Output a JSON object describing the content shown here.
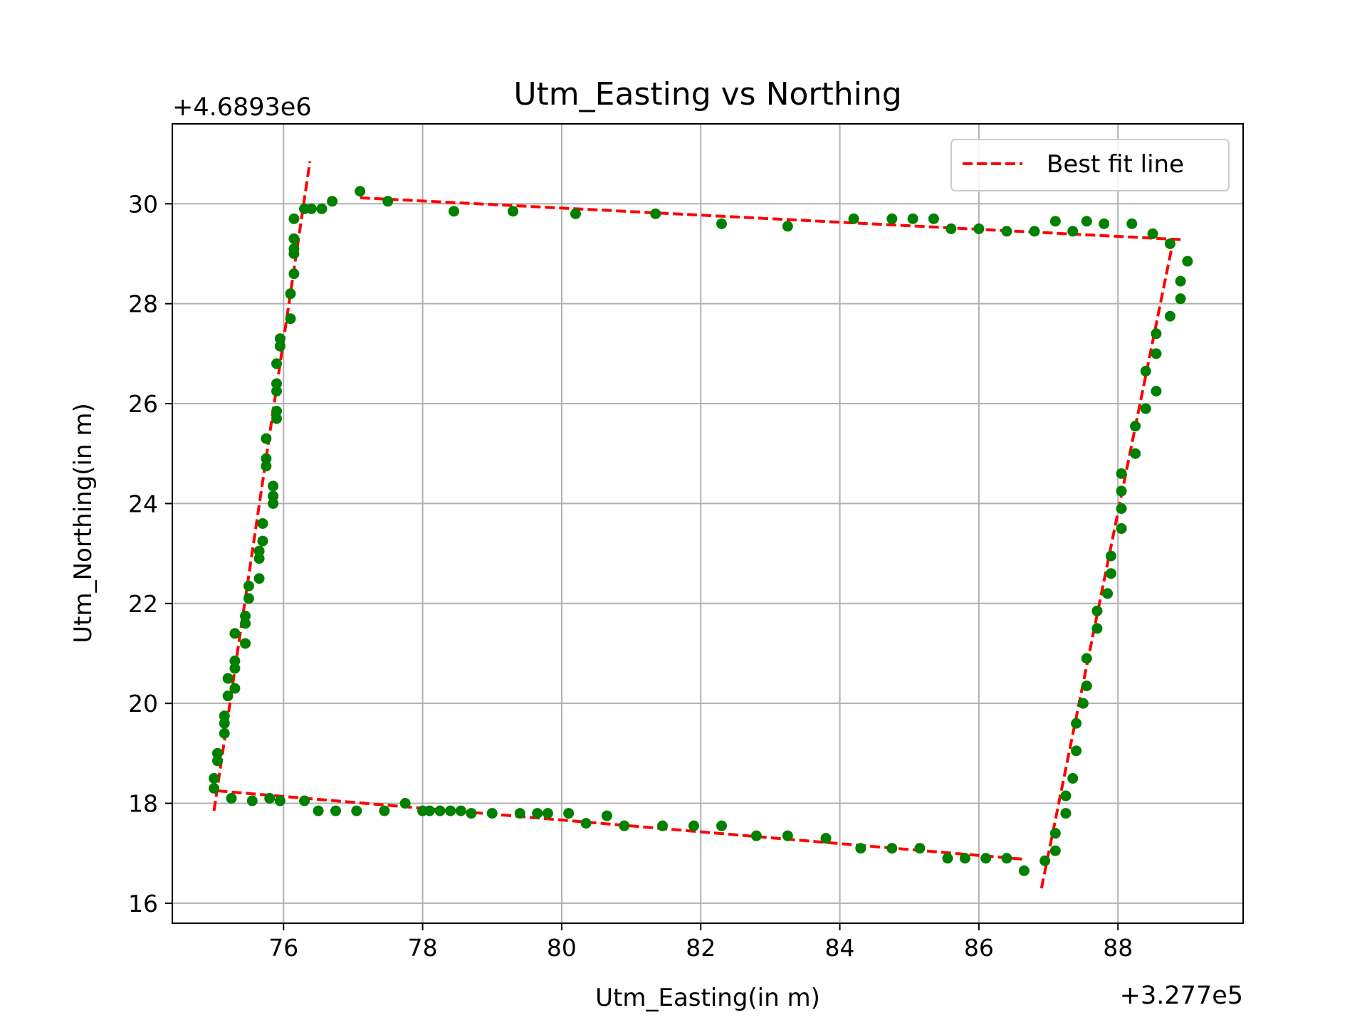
{
  "chart_data": {
    "type": "scatter",
    "title": "Utm_Easting vs Northing",
    "xlabel": "Utm_Easting(in m)",
    "ylabel": "Utm_Northing(in m)",
    "x_offset_label": "+3.277e5",
    "y_offset_label": "+4.6893e6",
    "xlim": [
      74.4,
      89.8
    ],
    "ylim": [
      15.6,
      31.6
    ],
    "x_ticks": [
      "76",
      "78",
      "80",
      "82",
      "84",
      "86",
      "88"
    ],
    "y_ticks": [
      "16",
      "18",
      "20",
      "22",
      "24",
      "26",
      "28",
      "30"
    ],
    "grid": true,
    "legend_position": "top-right",
    "colors": {
      "points": "#008000",
      "fit_line": "#ff0000",
      "grid": "#b0b0b0"
    },
    "fit_lines": {
      "name": "Best fit line",
      "segments": [
        [
          [
            75.0,
            17.85
          ],
          [
            76.38,
            30.85
          ]
        ],
        [
          [
            77.1,
            30.12
          ],
          [
            88.95,
            29.28
          ]
        ],
        [
          [
            75.05,
            18.25
          ],
          [
            86.65,
            16.88
          ]
        ],
        [
          [
            86.9,
            16.3
          ],
          [
            88.8,
            29.3
          ]
        ]
      ]
    },
    "points": [
      [
        75.0,
        18.3
      ],
      [
        75.0,
        18.5
      ],
      [
        75.05,
        18.85
      ],
      [
        75.05,
        19.0
      ],
      [
        75.15,
        19.4
      ],
      [
        75.15,
        19.6
      ],
      [
        75.15,
        19.75
      ],
      [
        75.2,
        20.15
      ],
      [
        75.2,
        20.5
      ],
      [
        75.3,
        20.3
      ],
      [
        75.3,
        20.7
      ],
      [
        75.3,
        20.85
      ],
      [
        75.3,
        21.4
      ],
      [
        75.45,
        21.2
      ],
      [
        75.45,
        21.6
      ],
      [
        75.45,
        21.75
      ],
      [
        75.5,
        22.1
      ],
      [
        75.5,
        22.35
      ],
      [
        75.65,
        22.5
      ],
      [
        75.65,
        22.9
      ],
      [
        75.65,
        23.05
      ],
      [
        75.7,
        23.25
      ],
      [
        75.7,
        23.6
      ],
      [
        75.75,
        24.75
      ],
      [
        75.75,
        24.9
      ],
      [
        75.75,
        25.3
      ],
      [
        75.85,
        24.0
      ],
      [
        75.85,
        24.15
      ],
      [
        75.85,
        24.35
      ],
      [
        75.9,
        25.7
      ],
      [
        75.9,
        25.85
      ],
      [
        75.9,
        26.25
      ],
      [
        75.9,
        26.4
      ],
      [
        75.9,
        26.8
      ],
      [
        75.95,
        27.15
      ],
      [
        75.95,
        27.3
      ],
      [
        76.1,
        27.7
      ],
      [
        76.1,
        28.2
      ],
      [
        76.15,
        28.6
      ],
      [
        76.15,
        29.0
      ],
      [
        76.15,
        29.1
      ],
      [
        76.15,
        29.3
      ],
      [
        76.15,
        29.7
      ],
      [
        76.3,
        29.9
      ],
      [
        76.4,
        29.9
      ],
      [
        76.55,
        29.9
      ],
      [
        76.7,
        30.05
      ],
      [
        77.1,
        30.25
      ],
      [
        77.5,
        30.05
      ],
      [
        78.45,
        29.85
      ],
      [
        79.3,
        29.85
      ],
      [
        80.2,
        29.8
      ],
      [
        81.35,
        29.8
      ],
      [
        82.3,
        29.6
      ],
      [
        83.25,
        29.55
      ],
      [
        84.2,
        29.7
      ],
      [
        84.75,
        29.7
      ],
      [
        85.05,
        29.7
      ],
      [
        85.35,
        29.7
      ],
      [
        85.6,
        29.5
      ],
      [
        86.0,
        29.5
      ],
      [
        86.4,
        29.45
      ],
      [
        86.8,
        29.45
      ],
      [
        87.1,
        29.65
      ],
      [
        87.35,
        29.45
      ],
      [
        87.55,
        29.65
      ],
      [
        87.8,
        29.6
      ],
      [
        88.2,
        29.6
      ],
      [
        88.5,
        29.4
      ],
      [
        88.75,
        29.2
      ],
      [
        89.0,
        28.85
      ],
      [
        88.9,
        28.45
      ],
      [
        88.9,
        28.1
      ],
      [
        88.75,
        27.75
      ],
      [
        88.55,
        27.4
      ],
      [
        88.55,
        27.0
      ],
      [
        88.4,
        26.65
      ],
      [
        88.55,
        26.25
      ],
      [
        88.4,
        25.9
      ],
      [
        88.25,
        25.55
      ],
      [
        88.25,
        25.0
      ],
      [
        88.05,
        24.6
      ],
      [
        88.05,
        24.25
      ],
      [
        88.05,
        23.9
      ],
      [
        88.05,
        23.5
      ],
      [
        87.9,
        22.95
      ],
      [
        87.9,
        22.6
      ],
      [
        87.85,
        22.2
      ],
      [
        87.7,
        21.85
      ],
      [
        87.7,
        21.5
      ],
      [
        87.55,
        20.9
      ],
      [
        87.55,
        20.35
      ],
      [
        87.5,
        20.0
      ],
      [
        87.4,
        19.6
      ],
      [
        87.4,
        19.05
      ],
      [
        87.35,
        18.5
      ],
      [
        87.25,
        18.15
      ],
      [
        87.25,
        17.8
      ],
      [
        87.1,
        17.4
      ],
      [
        87.1,
        17.05
      ],
      [
        86.95,
        16.85
      ],
      [
        86.65,
        16.65
      ],
      [
        86.4,
        16.9
      ],
      [
        86.1,
        16.9
      ],
      [
        85.8,
        16.9
      ],
      [
        85.55,
        16.9
      ],
      [
        85.15,
        17.1
      ],
      [
        84.75,
        17.1
      ],
      [
        84.3,
        17.1
      ],
      [
        83.8,
        17.3
      ],
      [
        83.25,
        17.35
      ],
      [
        82.8,
        17.35
      ],
      [
        82.3,
        17.55
      ],
      [
        81.9,
        17.55
      ],
      [
        81.45,
        17.55
      ],
      [
        80.9,
        17.55
      ],
      [
        80.65,
        17.75
      ],
      [
        80.35,
        17.6
      ],
      [
        80.1,
        17.8
      ],
      [
        79.8,
        17.8
      ],
      [
        79.65,
        17.8
      ],
      [
        79.4,
        17.8
      ],
      [
        79.0,
        17.8
      ],
      [
        78.7,
        17.8
      ],
      [
        78.55,
        17.85
      ],
      [
        78.4,
        17.85
      ],
      [
        78.25,
        17.85
      ],
      [
        78.1,
        17.85
      ],
      [
        78.0,
        17.85
      ],
      [
        77.75,
        18.0
      ],
      [
        77.45,
        17.85
      ],
      [
        77.05,
        17.85
      ],
      [
        76.75,
        17.85
      ],
      [
        76.5,
        17.85
      ],
      [
        76.3,
        18.05
      ],
      [
        75.95,
        18.05
      ],
      [
        75.8,
        18.1
      ],
      [
        75.55,
        18.05
      ],
      [
        75.25,
        18.1
      ]
    ]
  }
}
